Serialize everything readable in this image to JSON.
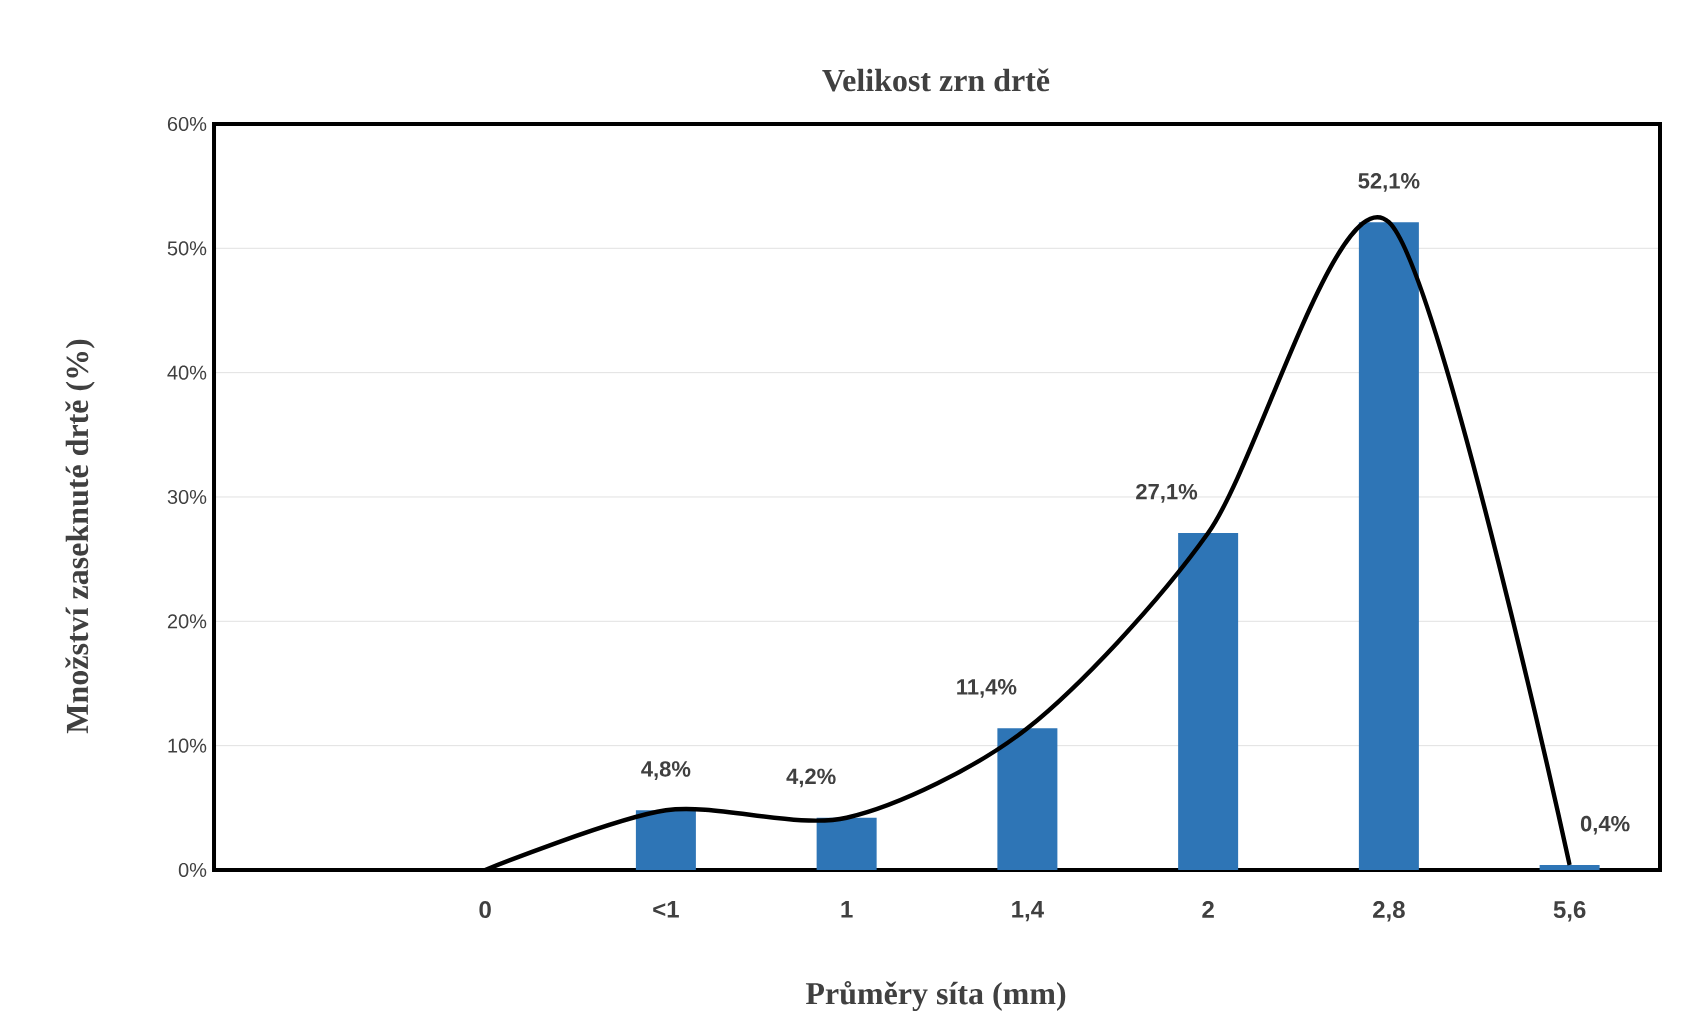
{
  "chart_data": {
    "type": "bar",
    "title": "Velikost zrn drtě",
    "xlabel": "Průměry síta (mm)",
    "ylabel": "Množství zaseknuté drtě (%)",
    "categories": [
      null,
      "0",
      "<1",
      "1",
      "1,4",
      "2",
      "2,8",
      "5,6"
    ],
    "series": [
      {
        "color": "#2e75b6",
        "values": [
          null,
          null,
          4.8,
          4.2,
          11.4,
          27.1,
          52.1,
          0.4
        ],
        "value_labels": [
          null,
          null,
          "4,8%",
          "4,2%",
          "11,4%",
          "27,1%",
          "52,1%",
          "0,4%"
        ]
      },
      {
        "type": "line",
        "color": "#000000",
        "values": [
          null,
          0,
          4.8,
          4.2,
          11.4,
          27.1,
          52.1,
          0.4
        ]
      }
    ],
    "ylim": [
      0,
      60
    ],
    "yticks": [
      {
        "value": 0,
        "label": "0%"
      },
      {
        "value": 10,
        "label": "10%"
      },
      {
        "value": 20,
        "label": "20%"
      },
      {
        "value": 30,
        "label": "30%"
      },
      {
        "value": 40,
        "label": "40%"
      },
      {
        "value": 50,
        "label": "50%"
      },
      {
        "value": 60,
        "label": "60%"
      }
    ],
    "grid": "y"
  }
}
